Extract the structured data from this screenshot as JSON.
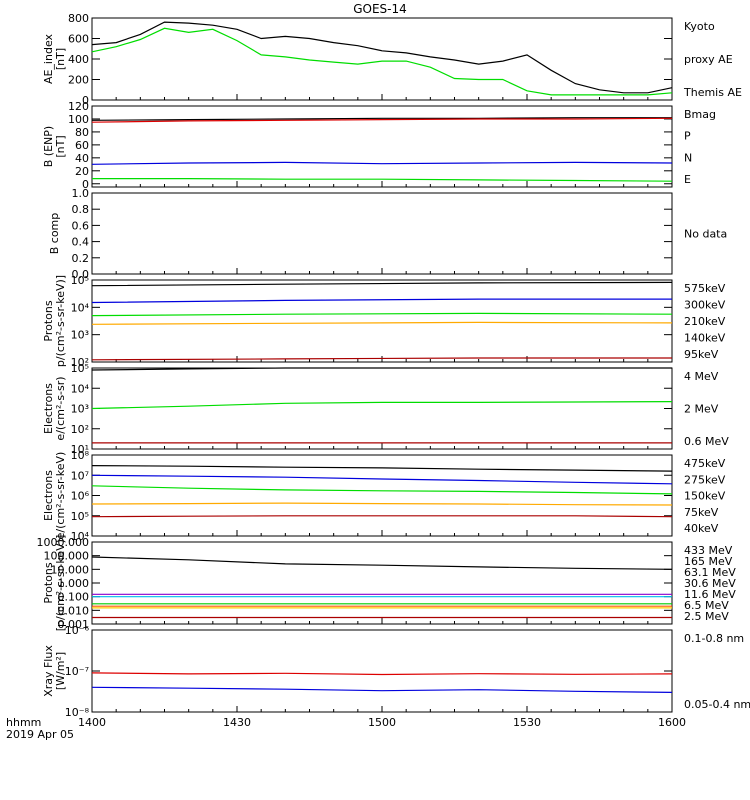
{
  "title": "GOES-14",
  "x_axis": {
    "corner_label": "hhmm",
    "date_label": "2019 Apr 05",
    "ticks": [
      "1400",
      "1430",
      "1500",
      "1530",
      "1600"
    ]
  },
  "chart_data": [
    {
      "type": "line",
      "id": "ae",
      "ylabel": [
        "AE_index",
        "[nT]"
      ],
      "yscale": "linear",
      "ylim": [
        0,
        800
      ],
      "yticks": [
        "0",
        "200",
        "400",
        "600",
        "800"
      ],
      "ytick_values": [
        0,
        200,
        400,
        600,
        800
      ],
      "x": [
        0,
        5,
        10,
        15,
        20,
        25,
        30,
        35,
        40,
        45,
        50,
        55,
        60,
        65,
        70,
        75,
        80,
        85,
        90,
        95,
        100,
        105,
        110,
        115,
        120
      ],
      "series": [
        {
          "name": "Themis AE",
          "color": "#000000",
          "values": [
            540,
            560,
            640,
            760,
            750,
            730,
            690,
            600,
            620,
            600,
            560,
            530,
            480,
            460,
            420,
            390,
            350,
            380,
            440,
            290,
            160,
            100,
            70,
            70,
            120
          ]
        },
        {
          "name": "Kyoto proxy AE",
          "color": "#00dd00",
          "values": [
            470,
            520,
            590,
            700,
            660,
            690,
            580,
            440,
            420,
            390,
            370,
            350,
            380,
            380,
            320,
            210,
            200,
            200,
            90,
            50,
            50,
            50,
            50,
            50,
            70
          ]
        }
      ],
      "legend": [
        "Kyoto",
        "proxy AE",
        "Themis AE"
      ]
    },
    {
      "type": "line",
      "id": "bfield",
      "ylabel": [
        "B (ENP)",
        "[nT]"
      ],
      "yscale": "linear",
      "ylim": [
        -5,
        120
      ],
      "yticks": [
        "0",
        "20",
        "40",
        "60",
        "80",
        "100",
        "120"
      ],
      "ytick_values": [
        0,
        20,
        40,
        60,
        80,
        100,
        120
      ],
      "x": [
        0,
        20,
        40,
        60,
        80,
        100,
        120
      ],
      "series": [
        {
          "name": "Bmag",
          "color": "#000000",
          "values": [
            98,
            99,
            100,
            101,
            101,
            102,
            102
          ]
        },
        {
          "name": "P",
          "color": "#dd0000",
          "values": [
            95,
            97,
            98,
            99,
            100,
            100,
            101
          ]
        },
        {
          "name": "N",
          "color": "#00dd00",
          "values": [
            8,
            8,
            7,
            7,
            6,
            5,
            4
          ]
        },
        {
          "name": "E",
          "color": "#0000dd",
          "values": [
            30,
            32,
            33,
            31,
            32,
            33,
            32
          ]
        }
      ]
    },
    {
      "type": "line",
      "id": "bcomp",
      "ylabel": [
        "B comp"
      ],
      "yscale": "linear",
      "ylim": [
        0,
        1
      ],
      "yticks": [
        "0.0",
        "0.2",
        "0.4",
        "0.6",
        "0.8",
        "1.0"
      ],
      "ytick_values": [
        0,
        0.2,
        0.4,
        0.6,
        0.8,
        1.0
      ],
      "x": [],
      "series": [],
      "note": "No data"
    },
    {
      "type": "line",
      "id": "protons",
      "ylabel": [
        "Protons",
        "p/(cm²-s-sr-keV)]"
      ],
      "yscale": "log",
      "ylim": [
        100,
        100000
      ],
      "yticks": [
        "10²",
        "10³",
        "10⁴",
        "10⁵"
      ],
      "ytick_values": [
        100,
        1000,
        10000,
        100000
      ],
      "x": [
        0,
        40,
        80,
        120
      ],
      "series": [
        {
          "name": "575keV",
          "color": "#000000",
          "values": [
            62000,
            70000,
            78000,
            82000
          ]
        },
        {
          "name": "300keV",
          "color": "#ffaa00",
          "values": [
            2400,
            2600,
            2800,
            2700
          ]
        },
        {
          "name": "210keV",
          "color": "#00dd00",
          "values": [
            5000,
            5600,
            6000,
            5600
          ]
        },
        {
          "name": "140keV",
          "color": "#0000dd",
          "values": [
            15000,
            18000,
            20000,
            20000
          ]
        },
        {
          "name": "95keV",
          "color": "#aa0000",
          "values": [
            120,
            130,
            140,
            140
          ]
        }
      ]
    },
    {
      "type": "line",
      "id": "electrons_mev",
      "ylabel": [
        "Electrons",
        "e/(cm²-s-sr)"
      ],
      "yscale": "log",
      "ylim": [
        10,
        100000
      ],
      "yticks": [
        "10¹",
        "10²",
        "10³",
        "10⁴",
        "10⁵"
      ],
      "ytick_values": [
        10,
        100,
        1000,
        10000,
        100000
      ],
      "x": [
        0,
        20,
        40,
        60,
        80,
        100,
        120
      ],
      "series": [
        {
          "name": "4 MeV",
          "color": "#aa0000",
          "values": [
            20,
            20,
            20,
            20,
            20,
            20,
            20
          ]
        },
        {
          "name": "2 MeV",
          "color": "#00dd00",
          "values": [
            1000,
            1300,
            1800,
            2000,
            2000,
            2100,
            2200
          ]
        },
        {
          "name": "0.6 MeV",
          "color": "#000000",
          "values": [
            80000,
            90000,
            100000,
            100000,
            100000,
            100000,
            100000
          ]
        }
      ]
    },
    {
      "type": "line",
      "id": "electrons_kev",
      "ylabel": [
        "Electrons",
        "e/(cm²-s-sr-keV)"
      ],
      "yscale": "log",
      "ylim": [
        10000,
        100000000
      ],
      "yticks": [
        "10⁴",
        "10⁵",
        "10⁶",
        "10⁷",
        "10⁸"
      ],
      "ytick_values": [
        10000,
        100000,
        1000000,
        10000000,
        100000000
      ],
      "x": [
        0,
        20,
        40,
        60,
        80,
        100,
        120
      ],
      "series": [
        {
          "name": "475keV",
          "color": "#aa0000",
          "values": [
            90000,
            95000,
            100000,
            100000,
            100000,
            100000,
            90000
          ]
        },
        {
          "name": "275keV",
          "color": "#ffaa00",
          "values": [
            380000,
            400000,
            420000,
            400000,
            380000,
            350000,
            340000
          ]
        },
        {
          "name": "150keV",
          "color": "#00dd00",
          "values": [
            3000000,
            2300000,
            1900000,
            1700000,
            1600000,
            1400000,
            1200000
          ]
        },
        {
          "name": "75keV",
          "color": "#0000dd",
          "values": [
            10000000,
            9000000,
            8000000,
            6500000,
            5500000,
            4500000,
            3800000
          ]
        },
        {
          "name": "40keV",
          "color": "#000000",
          "values": [
            30000000,
            28000000,
            25000000,
            23000000,
            20000000,
            18000000,
            16000000
          ]
        }
      ]
    },
    {
      "type": "line",
      "id": "protons_mev",
      "ylabel": [
        "Protons",
        "[p/(cm²-s-sr-keV)]"
      ],
      "yscale": "log",
      "ylim": [
        0.001,
        1000
      ],
      "yticks": [
        "0.001",
        "0.010",
        "0.100",
        "1.000",
        "10.000",
        "100.000",
        "1000.000"
      ],
      "ytick_values": [
        0.001,
        0.01,
        0.1,
        1,
        10,
        100,
        1000
      ],
      "x": [
        0,
        20,
        40,
        60,
        80,
        100,
        120
      ],
      "series": [
        {
          "name": "433 MeV",
          "color": "#aa0000",
          "values": [
            0.003,
            0.003,
            0.003,
            0.003,
            0.003,
            0.003,
            0.003
          ]
        },
        {
          "name": "165 MeV",
          "color": "#ff5500",
          "values": [
            0.02,
            0.02,
            0.02,
            0.02,
            0.02,
            0.02,
            0.02
          ]
        },
        {
          "name": "63.1 MeV",
          "color": "#ffcc00",
          "values": [
            0.015,
            0.015,
            0.015,
            0.015,
            0.015,
            0.015,
            0.015
          ]
        },
        {
          "name": "30.6 MeV",
          "color": "#00cc00",
          "values": [
            0.03,
            0.03,
            0.03,
            0.03,
            0.03,
            0.03,
            0.03
          ]
        },
        {
          "name": "11.6 MeV",
          "color": "#00bbee",
          "values": [
            0.1,
            0.1,
            0.1,
            0.1,
            0.1,
            0.1,
            0.1
          ]
        },
        {
          "name": "6.5 MeV",
          "color": "#8800cc",
          "values": [
            0.15,
            0.15,
            0.15,
            0.15,
            0.15,
            0.15,
            0.15
          ]
        },
        {
          "name": "2.5 MeV",
          "color": "#000000",
          "values": [
            80,
            50,
            25,
            20,
            15,
            12,
            10
          ]
        }
      ]
    },
    {
      "type": "line",
      "id": "xray",
      "ylabel": [
        "Xray Flux",
        "[W/m²]"
      ],
      "yscale": "log",
      "ylim": [
        1e-08,
        1e-06
      ],
      "yticks": [
        "10⁻⁸",
        "10⁻⁷",
        "10⁻⁶"
      ],
      "ytick_values": [
        1e-08,
        1e-07,
        1e-06
      ],
      "x": [
        0,
        20,
        40,
        60,
        80,
        100,
        120
      ],
      "series": [
        {
          "name": "0.1-0.8 nm",
          "color": "#dd0000",
          "values": [
            9e-08,
            8.5e-08,
            8.8e-08,
            8.2e-08,
            8.6e-08,
            8.3e-08,
            8.5e-08
          ]
        },
        {
          "name": "0.05-0.4 nm",
          "color": "#0000dd",
          "values": [
            4e-08,
            3.8e-08,
            3.6e-08,
            3.3e-08,
            3.5e-08,
            3.2e-08,
            3e-08
          ]
        }
      ]
    }
  ]
}
